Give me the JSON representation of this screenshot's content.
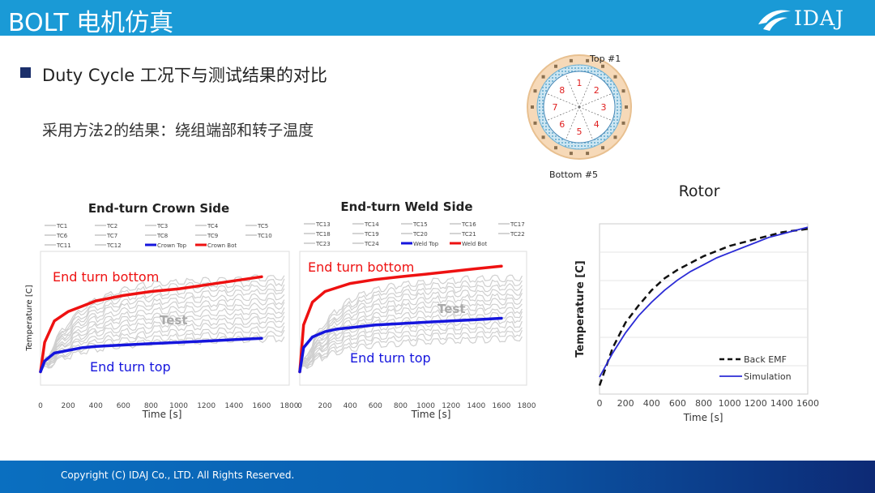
{
  "page": {
    "title": "BOLT 电机仿真",
    "logo_text": "IDAJ",
    "heading": "Duty Cycle 工况下与测试结果的对比",
    "subheading": "采用方法2的结果：绕组端部和转子温度",
    "copyright": "Copyright (C)  IDAJ Co., LTD. All Rights Reserved."
  },
  "colors": {
    "header": "#1a9ad6",
    "bullet": "#1b2f6b",
    "red": "#ee1111",
    "blue": "#1515dd",
    "gray": "#cfcfcf",
    "sim": "#2b2bd6"
  },
  "diagram": {
    "top_label": "Top #1",
    "bottom_label": "Bottom #5",
    "numbers": [
      "1",
      "2",
      "3",
      "4",
      "5",
      "6",
      "7",
      "8"
    ]
  },
  "chart_data": [
    {
      "type": "line",
      "title": "End-turn Crown Side",
      "xlabel": "Time [s]",
      "ylabel": "Temperature [C]",
      "xlim": [
        0,
        1800
      ],
      "xticks": [
        0,
        200,
        400,
        600,
        800,
        1000,
        1200,
        1400,
        1600,
        1800
      ],
      "legend": [
        "TC1",
        "TC2",
        "TC3",
        "TC4",
        "TC5",
        "TC6",
        "TC7",
        "TC8",
        "TC9",
        "TC10",
        "TC11",
        "TC12",
        "Crown Top",
        "Crown Bot"
      ],
      "annotations": {
        "bottom": "End turn bottom",
        "top": "End turn top",
        "test": "Test"
      },
      "series": [
        {
          "name": "Crown Bot",
          "color": "red",
          "x": [
            0,
            30,
            100,
            200,
            300,
            400,
            600,
            800,
            1000,
            1200,
            1400,
            1600
          ],
          "y": [
            0.1,
            0.32,
            0.48,
            0.55,
            0.59,
            0.63,
            0.67,
            0.7,
            0.72,
            0.75,
            0.78,
            0.81
          ]
        },
        {
          "name": "Crown Top",
          "color": "blue",
          "x": [
            0,
            30,
            100,
            200,
            300,
            400,
            600,
            800,
            1000,
            1200,
            1400,
            1600
          ],
          "y": [
            0.1,
            0.18,
            0.24,
            0.26,
            0.28,
            0.29,
            0.3,
            0.31,
            0.32,
            0.33,
            0.34,
            0.35
          ]
        }
      ]
    },
    {
      "type": "line",
      "title": "End-turn Weld Side",
      "xlabel": "Time [s]",
      "ylabel": "",
      "xlim": [
        0,
        1800
      ],
      "xticks": [
        0,
        200,
        400,
        600,
        800,
        1000,
        1200,
        1400,
        1600,
        1800
      ],
      "legend": [
        "TC13",
        "TC14",
        "TC15",
        "TC16",
        "TC17",
        "TC18",
        "TC19",
        "TC20",
        "TC21",
        "TC22",
        "TC23",
        "TC24",
        "Weld Top",
        "Weld Bot"
      ],
      "annotations": {
        "bottom": "End turn bottom",
        "top": "End turn top",
        "test": "Test"
      },
      "series": [
        {
          "name": "Weld Bot",
          "color": "red",
          "x": [
            0,
            30,
            100,
            200,
            300,
            400,
            600,
            800,
            1000,
            1200,
            1400,
            1600
          ],
          "y": [
            0.1,
            0.45,
            0.62,
            0.7,
            0.73,
            0.76,
            0.79,
            0.81,
            0.83,
            0.85,
            0.87,
            0.89
          ]
        },
        {
          "name": "Weld Top",
          "color": "blue",
          "x": [
            0,
            30,
            100,
            200,
            300,
            400,
            600,
            800,
            1000,
            1200,
            1400,
            1600
          ],
          "y": [
            0.1,
            0.28,
            0.36,
            0.4,
            0.42,
            0.43,
            0.45,
            0.46,
            0.47,
            0.48,
            0.49,
            0.5
          ]
        }
      ]
    },
    {
      "type": "line",
      "title": "Rotor",
      "xlabel": "Time [s]",
      "ylabel": "Temperature [C]",
      "xlim": [
        0,
        1600
      ],
      "xticks": [
        0,
        200,
        400,
        600,
        800,
        1000,
        1200,
        1400,
        1600
      ],
      "legend_placement": "bottom-right",
      "series": [
        {
          "name": "Back EMF",
          "style": "dashed",
          "x": [
            0,
            100,
            200,
            300,
            400,
            500,
            600,
            700,
            800,
            900,
            1000,
            1100,
            1200,
            1300,
            1400,
            1500,
            1600
          ],
          "y": [
            0.05,
            0.27,
            0.42,
            0.52,
            0.61,
            0.68,
            0.73,
            0.77,
            0.81,
            0.84,
            0.87,
            0.89,
            0.91,
            0.93,
            0.95,
            0.96,
            0.97
          ]
        },
        {
          "name": "Simulation",
          "style": "solid",
          "x": [
            0,
            100,
            200,
            300,
            400,
            500,
            600,
            700,
            800,
            900,
            1000,
            1100,
            1200,
            1300,
            1400,
            1500,
            1600
          ],
          "y": [
            0.1,
            0.24,
            0.36,
            0.46,
            0.54,
            0.61,
            0.67,
            0.72,
            0.76,
            0.8,
            0.83,
            0.86,
            0.89,
            0.92,
            0.94,
            0.96,
            0.98
          ]
        }
      ]
    }
  ]
}
